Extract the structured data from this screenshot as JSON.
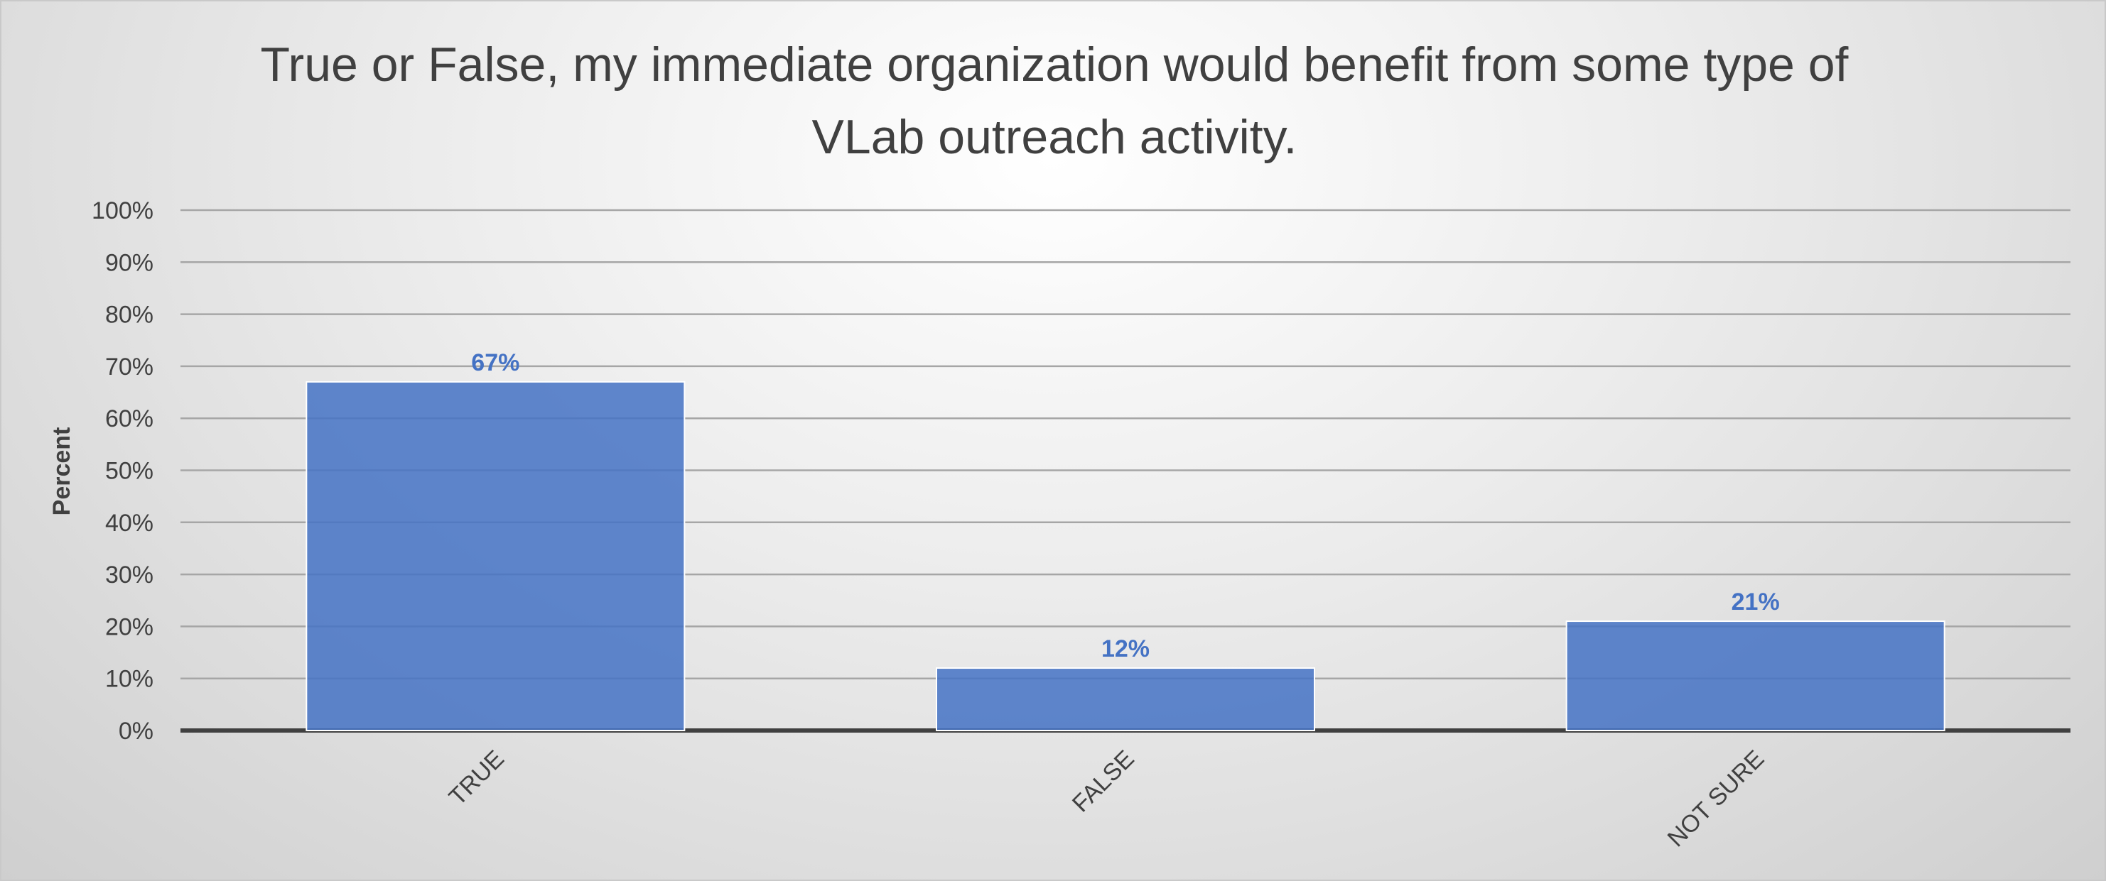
{
  "chart_data": {
    "type": "bar",
    "title": "True or False, my immediate organization would benefit from some type of VLab outreach activity.",
    "ylabel": "Percent",
    "xlabel": "",
    "categories": [
      "TRUE",
      "FALSE",
      "NOT SURE"
    ],
    "values": [
      67,
      12,
      21
    ],
    "data_labels": [
      "67%",
      "12%",
      "21%"
    ],
    "ylim": [
      0,
      100
    ],
    "yticks": [
      0,
      10,
      20,
      30,
      40,
      50,
      60,
      70,
      80,
      90,
      100
    ],
    "ytick_labels": [
      "0%",
      "10%",
      "20%",
      "30%",
      "40%",
      "50%",
      "60%",
      "70%",
      "80%",
      "90%",
      "100%"
    ],
    "grid": true,
    "legend": "none",
    "colors": {
      "bar": "#4472c4",
      "data_label": "#4472c4",
      "gridline": "#a6a6a6",
      "axis": "#404040",
      "text": "#404040"
    }
  }
}
